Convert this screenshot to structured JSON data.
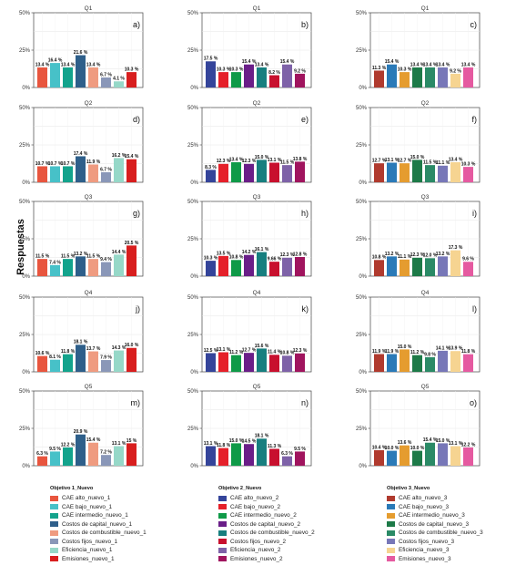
{
  "ylabel": "Respuestas",
  "panels": [
    {
      "quarter": "Q1",
      "letter": "a)",
      "objective": 0,
      "values": [
        13.4,
        16.4,
        13.4,
        21.6,
        13.4,
        6.7,
        4.1,
        10.3
      ],
      "labels": [
        "13.4 %",
        "16.4 %",
        "13.4 %",
        "21.6 %",
        "13.4 %",
        "6.7 %",
        "4.1 %",
        "10.3 %"
      ]
    },
    {
      "quarter": "Q1",
      "letter": "b)",
      "objective": 1,
      "values": [
        17.5,
        10.3,
        10.3,
        15.4,
        13.4,
        8.2,
        15.4,
        9.2
      ],
      "labels": [
        "17.5 %",
        "10.3 %",
        "10.3 %",
        "15.4 %",
        "13.4 %",
        "8.2 %",
        "15.4 %",
        "9.2 %"
      ]
    },
    {
      "quarter": "Q1",
      "letter": "c)",
      "objective": 2,
      "values": [
        11.3,
        15.4,
        10.3,
        13.4,
        13.4,
        13.4,
        9.2,
        13.4
      ],
      "labels": [
        "11.3 %",
        "15.4 %",
        "10.3 %",
        "13.4 %",
        "13.4 %",
        "13.4 %",
        "9.2 %",
        "13.4 %"
      ]
    },
    {
      "quarter": "Q2",
      "letter": "d)",
      "objective": 0,
      "values": [
        10.7,
        10.7,
        10.7,
        17.4,
        11.9,
        6.7,
        16.2,
        15.4
      ],
      "labels": [
        "10.7 %",
        "10.7 %",
        "10.7 %",
        "17.4 %",
        "11.9 %",
        "6.7 %",
        "16.2 %",
        "15.4 %"
      ]
    },
    {
      "quarter": "Q2",
      "letter": "e)",
      "objective": 1,
      "values": [
        8.3,
        12.3,
        13.4,
        12.3,
        15.0,
        13.1,
        11.5,
        13.8
      ],
      "labels": [
        "8.3 %",
        "12.3 %",
        "13.4 %",
        "12.3 %",
        "15.0 %",
        "13.1 %",
        "11.5 %",
        "13.8 %"
      ]
    },
    {
      "quarter": "Q2",
      "letter": "f)",
      "objective": 2,
      "values": [
        12.7,
        13.1,
        12.7,
        15.0,
        11.5,
        11.1,
        13.4,
        10.3
      ],
      "labels": [
        "12.7 %",
        "13.1 %",
        "12.7 %",
        "15.0 %",
        "11.5 %",
        "11.1 %",
        "13.4 %",
        "10.3 %"
      ]
    },
    {
      "quarter": "Q3",
      "letter": "g)",
      "objective": 0,
      "values": [
        11.5,
        7.4,
        11.5,
        13.2,
        11.5,
        9.4,
        14.4,
        20.5
      ],
      "labels": [
        "11.5 %",
        "7.4 %",
        "11.5 %",
        "13.2 %",
        "11.5 %",
        "9.4 %",
        "14.4 %",
        "20.5 %"
      ]
    },
    {
      "quarter": "Q3",
      "letter": "h)",
      "objective": 1,
      "values": [
        10.3,
        13.5,
        10.8,
        14.2,
        16.1,
        9.66,
        12.3,
        12.8
      ],
      "labels": [
        "10.3 %",
        "13.5 %",
        "10.8 %",
        "14.2 %",
        "16.1 %",
        "9.66 %",
        "12.3 %",
        "12.8 %"
      ]
    },
    {
      "quarter": "Q3",
      "letter": "i)",
      "objective": 2,
      "values": [
        10.8,
        13.2,
        11.1,
        12.3,
        12.0,
        13.2,
        17.3,
        9.6
      ],
      "labels": [
        "10.8 %",
        "13.2 %",
        "11.1 %",
        "12.3 %",
        "12.0 %",
        "13.2 %",
        "17.3 %",
        "9.6 %"
      ]
    },
    {
      "quarter": "Q4",
      "letter": "j)",
      "objective": 0,
      "values": [
        10.6,
        8.1,
        11.8,
        18.1,
        13.7,
        7.9,
        14.3,
        16.0
      ],
      "labels": [
        "10.6 %",
        "8.1 %",
        "11.8 %",
        "18.1 %",
        "13.7 %",
        "7.9 %",
        "14.3 %",
        "16.0 %"
      ]
    },
    {
      "quarter": "Q4",
      "letter": "k)",
      "objective": 1,
      "values": [
        12.5,
        13.1,
        11.2,
        12.7,
        15.6,
        11.4,
        10.8,
        12.3
      ],
      "labels": [
        "12.5 %",
        "13.1 %",
        "11.2 %",
        "12.7 %",
        "15.6 %",
        "11.4 %",
        "10.8 %",
        "12.3 %"
      ]
    },
    {
      "quarter": "Q4",
      "letter": "l)",
      "objective": 2,
      "values": [
        11.9,
        11.9,
        15.0,
        11.2,
        9.8,
        14.1,
        13.9,
        11.8
      ],
      "labels": [
        "11.9 %",
        "11.9 %",
        "15.0 %",
        "11.2 %",
        "9.8 %",
        "14.1 %",
        "13.9 %",
        "11.8 %"
      ]
    },
    {
      "quarter": "Q5",
      "letter": "m)",
      "objective": 0,
      "values": [
        6.3,
        9.5,
        12.2,
        20.9,
        15.4,
        7.2,
        13.1,
        15.0
      ],
      "labels": [
        "6.3 %",
        "9.5 %",
        "12.2 %",
        "20.9 %",
        "15.4 %",
        "7.2 %",
        "13.1 %",
        "15 %"
      ]
    },
    {
      "quarter": "Q5",
      "letter": "n)",
      "objective": 1,
      "values": [
        13.1,
        11.8,
        15.0,
        14.5,
        18.1,
        11.3,
        6.3,
        9.5
      ],
      "labels": [
        "13.1 %",
        "11.8 %",
        "15.0 %",
        "14.5 %",
        "18.1 %",
        "11.3 %",
        "6.3 %",
        "9.5 %"
      ]
    },
    {
      "quarter": "Q5",
      "letter": "o)",
      "objective": 2,
      "values": [
        10.4,
        10.0,
        13.6,
        10.0,
        15.4,
        15.0,
        13.1,
        12.2
      ],
      "labels": [
        "10.4 %",
        "10.0 %",
        "13.6 %",
        "10.0 %",
        "15.4 %",
        "15.0 %",
        "13.1 %",
        "12.2 %"
      ]
    }
  ],
  "chart_data": {
    "type": "bar",
    "ylabel": "Respuestas",
    "ylim": [
      0,
      50
    ],
    "yticks": [
      "0%",
      "25%",
      "50%"
    ],
    "grid": true,
    "legend_position": "bottom",
    "categories": [
      "CAE alto",
      "CAE bajo",
      "CAE intermedio",
      "Costos de capital",
      "Costos de combustible",
      "Costos fijos",
      "Eficiencia",
      "Emisiones"
    ]
  },
  "legends": [
    {
      "title": "Objetivo 1_Nuevo",
      "colors": [
        "#e8553e",
        "#47c1c8",
        "#13a38c",
        "#2e5f8a",
        "#ef9b80",
        "#8a97b8",
        "#96d8c8",
        "#d81e1e"
      ],
      "items": [
        "CAE alto_nuevo_1",
        "CAE bajo_nuevo_1",
        "CAE intermedio_nuevo_1",
        "Costos de capital_nuevo_1",
        "Costos de combustible_nuevo_1",
        "Costos fijos_nuevo_1",
        "Eficiencia_nuevo_1",
        "Emisiones_nuevo_1"
      ]
    },
    {
      "title": "Objetivo 2_Nuevo",
      "colors": [
        "#34449a",
        "#e5202a",
        "#0f9a48",
        "#6a1e88",
        "#177f7f",
        "#c8102e",
        "#7e62a8",
        "#a0145e"
      ],
      "items": [
        "CAE alto_nuevo_2",
        "CAE bajo_nuevo_2",
        "CAE intermedio_nuevo_2",
        "Costos de capital_nuevo_2",
        "Costos de combustible_nuevo_2",
        "Costos fijos_nuevo_2",
        "Eficiencia_nuevo_2",
        "Emisiones_nuevo_2"
      ]
    },
    {
      "title": "Objetivo 3_Nuevo",
      "colors": [
        "#b03a2e",
        "#2a7ab8",
        "#e59c2f",
        "#1d7a48",
        "#2a8a66",
        "#7777b8",
        "#f6d491",
        "#e55aa0"
      ],
      "items": [
        "CAE alto_nuevo_3",
        "CAE bajo_nuevo_3",
        "CAE intermedio_nuevo_3",
        "Costos de capital_nuevo_3",
        "Costos de combustible_nuevo_3",
        "Costos fijos_nuevo_3",
        "Eficiencia_nuevo_3",
        "Emisiones_nuevo_3"
      ]
    }
  ]
}
